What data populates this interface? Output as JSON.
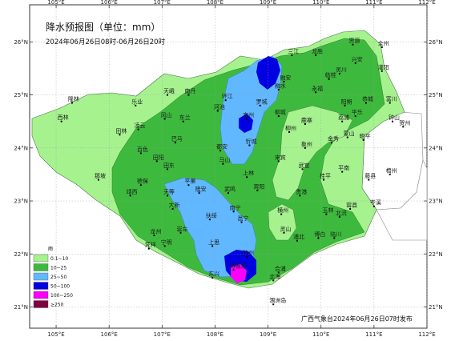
{
  "title": "降水预报图（单位：mm）",
  "period": "2024年06月26日08时-06月26日20时",
  "issuer": "广西气象台2024年06月26日07时发布",
  "legend": {
    "title": "雨",
    "items": [
      {
        "label": "0.1~10",
        "color": "#a6f28f"
      },
      {
        "label": "10~25",
        "color": "#3dba3d"
      },
      {
        "label": "25~50",
        "color": "#61b8ff"
      },
      {
        "label": "50~100",
        "color": "#0000e1"
      },
      {
        "label": "100~250",
        "color": "#fa00fa"
      },
      {
        "label": "≥250",
        "color": "#800040"
      }
    ]
  },
  "axes": {
    "lon_labels": [
      "105°E",
      "106°E",
      "107°E",
      "108°E",
      "109°E",
      "110°E",
      "111°E",
      "112°E"
    ],
    "lat_labels": [
      "26°N",
      "25°N",
      "24°N",
      "23°N",
      "22°N",
      "21°N"
    ]
  },
  "places": [
    {
      "name": "资源",
      "lon": 110.6,
      "lat": 25.95
    },
    {
      "name": "全州",
      "lon": 111.15,
      "lat": 25.9
    },
    {
      "name": "三江",
      "lon": 109.45,
      "lat": 25.75
    },
    {
      "name": "龙胜",
      "lon": 109.9,
      "lat": 25.75
    },
    {
      "name": "兴安",
      "lon": 110.65,
      "lat": 25.6
    },
    {
      "name": "灌阳",
      "lon": 111.15,
      "lat": 25.45
    },
    {
      "name": "灵川",
      "lon": 110.35,
      "lat": 25.4
    },
    {
      "name": "融安",
      "lon": 109.3,
      "lat": 25.25
    },
    {
      "name": "临桂",
      "lon": 110.15,
      "lat": 25.3
    },
    {
      "name": "融水",
      "lon": 109.2,
      "lat": 25.1
    },
    {
      "name": "永福",
      "lon": 109.9,
      "lat": 25.05
    },
    {
      "name": "隆林",
      "lon": 105.3,
      "lat": 24.85
    },
    {
      "name": "天峨",
      "lon": 107.1,
      "lat": 25.0
    },
    {
      "name": "南丹",
      "lon": 107.5,
      "lat": 25.0
    },
    {
      "name": "环江",
      "lon": 108.2,
      "lat": 24.9
    },
    {
      "name": "罗城",
      "lon": 108.85,
      "lat": 24.8
    },
    {
      "name": "阳朔",
      "lon": 110.45,
      "lat": 24.8
    },
    {
      "name": "恭城",
      "lon": 110.85,
      "lat": 24.85
    },
    {
      "name": "富川",
      "lon": 111.3,
      "lat": 24.85
    },
    {
      "name": "乐业",
      "lon": 106.5,
      "lat": 24.8
    },
    {
      "name": "河池",
      "lon": 108.05,
      "lat": 24.7
    },
    {
      "name": "宜州",
      "lon": 108.6,
      "lat": 24.55
    },
    {
      "name": "柳城",
      "lon": 109.2,
      "lat": 24.6
    },
    {
      "name": "鹿寨",
      "lon": 109.7,
      "lat": 24.45
    },
    {
      "name": "荔浦",
      "lon": 110.4,
      "lat": 24.5
    },
    {
      "name": "平乐",
      "lon": 110.65,
      "lat": 24.6
    },
    {
      "name": "钟山",
      "lon": 111.35,
      "lat": 24.5
    },
    {
      "name": "西林",
      "lon": 105.1,
      "lat": 24.5
    },
    {
      "name": "凤山",
      "lon": 107.05,
      "lat": 24.55
    },
    {
      "name": "东兰",
      "lon": 107.4,
      "lat": 24.5
    },
    {
      "name": "凌云",
      "lon": 106.55,
      "lat": 24.35
    },
    {
      "name": "忻城",
      "lon": 108.65,
      "lat": 24.05
    },
    {
      "name": "柳州",
      "lon": 109.4,
      "lat": 24.3
    },
    {
      "name": "金秀",
      "lon": 110.2,
      "lat": 24.1
    },
    {
      "name": "蒙山",
      "lon": 110.5,
      "lat": 24.2
    },
    {
      "name": "昭平",
      "lon": 110.8,
      "lat": 24.15
    },
    {
      "name": "贺州",
      "lon": 111.55,
      "lat": 24.4
    },
    {
      "name": "田林",
      "lon": 106.2,
      "lat": 24.25
    },
    {
      "name": "巴马",
      "lon": 107.25,
      "lat": 24.1
    },
    {
      "name": "都安",
      "lon": 108.1,
      "lat": 23.95
    },
    {
      "name": "象州",
      "lon": 109.7,
      "lat": 24.0
    },
    {
      "name": "百色",
      "lon": 106.6,
      "lat": 23.9
    },
    {
      "name": "田阳",
      "lon": 106.9,
      "lat": 23.75
    },
    {
      "name": "马山",
      "lon": 108.15,
      "lat": 23.7
    },
    {
      "name": "来宾",
      "lon": 109.2,
      "lat": 23.75
    },
    {
      "name": "武宣",
      "lon": 109.65,
      "lat": 23.6
    },
    {
      "name": "田东",
      "lon": 107.1,
      "lat": 23.6
    },
    {
      "name": "平南",
      "lon": 110.4,
      "lat": 23.55
    },
    {
      "name": "藤县",
      "lon": 110.9,
      "lat": 23.4
    },
    {
      "name": "梧州",
      "lon": 111.3,
      "lat": 23.5
    },
    {
      "name": "那坡",
      "lon": 105.8,
      "lat": 23.4
    },
    {
      "name": "德保",
      "lon": 106.6,
      "lat": 23.3
    },
    {
      "name": "上林",
      "lon": 108.6,
      "lat": 23.45
    },
    {
      "name": "平果",
      "lon": 107.5,
      "lat": 23.3
    },
    {
      "name": "宾阳",
      "lon": 108.8,
      "lat": 23.2
    },
    {
      "name": "桂平",
      "lon": 110.05,
      "lat": 23.4
    },
    {
      "name": "靖西",
      "lon": 106.4,
      "lat": 23.1
    },
    {
      "name": "天等",
      "lon": 107.1,
      "lat": 23.1
    },
    {
      "name": "隆安",
      "lon": 107.7,
      "lat": 23.15
    },
    {
      "name": "武鸣",
      "lon": 108.25,
      "lat": 23.15
    },
    {
      "name": "贵港",
      "lon": 109.6,
      "lat": 23.1
    },
    {
      "name": "岑溪",
      "lon": 111.0,
      "lat": 22.9
    },
    {
      "name": "大新",
      "lon": 107.2,
      "lat": 22.85
    },
    {
      "name": "南宁",
      "lon": 108.35,
      "lat": 22.8
    },
    {
      "name": "横州",
      "lon": 109.25,
      "lat": 22.75
    },
    {
      "name": "玉林",
      "lon": 110.1,
      "lat": 22.75
    },
    {
      "name": "北流",
      "lon": 110.35,
      "lat": 22.7
    },
    {
      "name": "容县",
      "lon": 110.55,
      "lat": 22.85
    },
    {
      "name": "扶绥",
      "lon": 107.9,
      "lat": 22.65
    },
    {
      "name": "邕宁",
      "lon": 108.5,
      "lat": 22.6
    },
    {
      "name": "灵山",
      "lon": 109.3,
      "lat": 22.4
    },
    {
      "name": "浦北",
      "lon": 109.55,
      "lat": 22.25
    },
    {
      "name": "博白",
      "lon": 109.95,
      "lat": 22.3
    },
    {
      "name": "陆川",
      "lon": 110.25,
      "lat": 22.3
    },
    {
      "name": "龙州",
      "lon": 106.85,
      "lat": 22.35
    },
    {
      "name": "崇左",
      "lon": 107.35,
      "lat": 22.4
    },
    {
      "name": "凭祥",
      "lon": 106.75,
      "lat": 22.1
    },
    {
      "name": "宁明",
      "lon": 107.05,
      "lat": 22.15
    },
    {
      "name": "上思",
      "lon": 107.95,
      "lat": 22.15
    },
    {
      "name": "钦州",
      "lon": 108.6,
      "lat": 21.95
    },
    {
      "name": "东兴",
      "lon": 107.95,
      "lat": 21.55
    },
    {
      "name": "防城港",
      "lon": 108.35,
      "lat": 21.7
    },
    {
      "name": "合浦",
      "lon": 109.2,
      "lat": 21.65
    },
    {
      "name": "北海",
      "lon": 109.1,
      "lat": 21.5
    },
    {
      "name": "涠洲岛",
      "lon": 109.1,
      "lat": 21.05
    }
  ]
}
